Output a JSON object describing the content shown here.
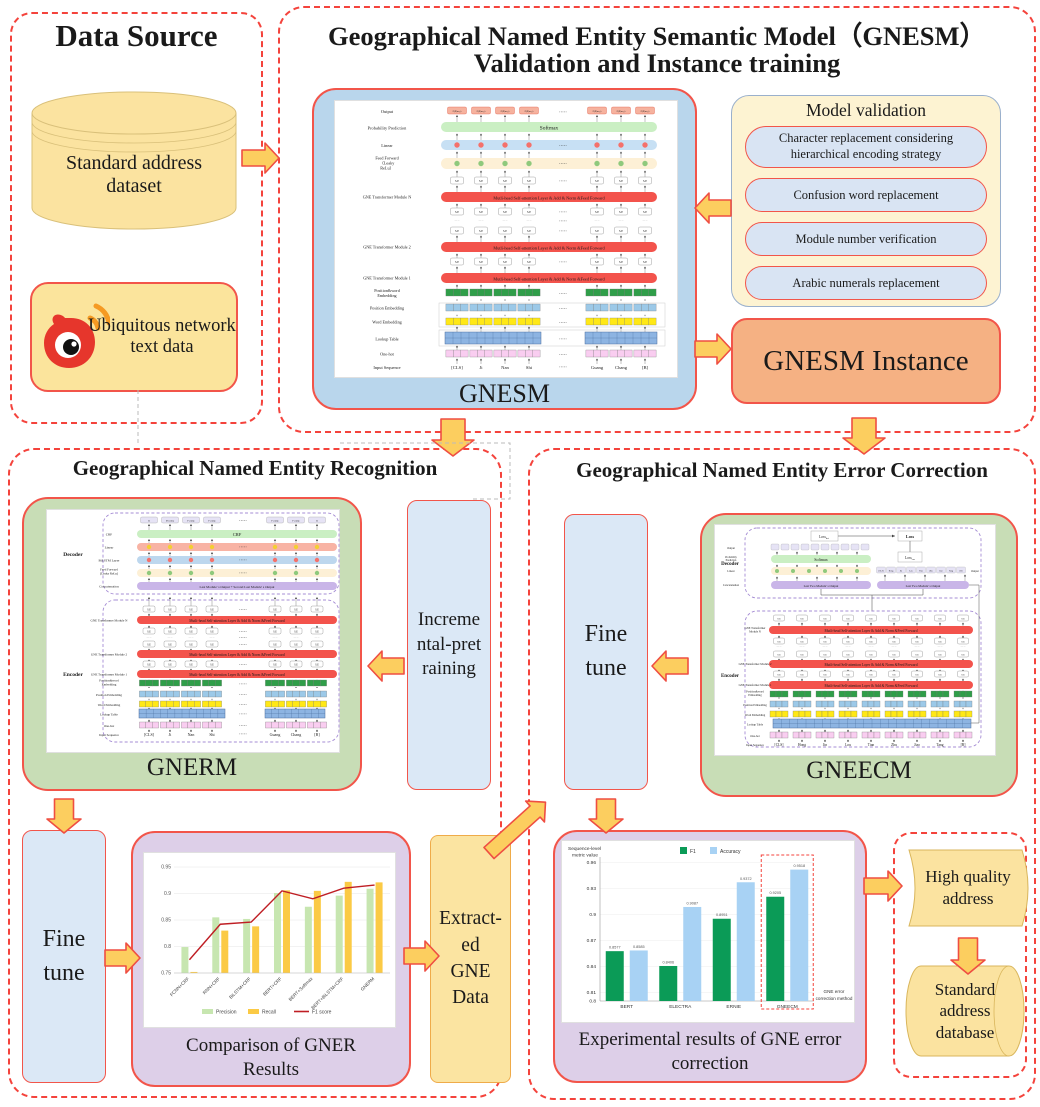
{
  "data_source": {
    "title": "Data Source",
    "dataset_label": "Standard address dataset",
    "network_label": "Ubiquitous network text data"
  },
  "semantic_section": {
    "title_line1": "Geographical Named Entity Semantic Model（GNESM）",
    "title_line2": "Validation and Instance training",
    "model_label": "GNESM",
    "validation_title": "Model validation",
    "validation_items": [
      "Character replacement considering hierarchical encoding strategy",
      "Confusion word replacement",
      "Module number verification",
      "Arabic numerals replacement"
    ],
    "instance_label": "GNESM Instance"
  },
  "recognition_section": {
    "title": "Geographical Named Entity Recognition",
    "model_label": "GNERM",
    "incremental_label": "Incremental-pretraining",
    "fine_tune_label": "Fine tune",
    "chart_caption": "Comparison of GNER Results",
    "extracted_label": "Extract-ed GNE Data"
  },
  "correction_section": {
    "title": "Geographical Named Entity Error Correction",
    "model_label": "GNEECM",
    "fine_tune_label": "Fine tune",
    "chart_caption": "Experimental results of GNE error correction",
    "high_quality_label": "High quality address",
    "database_label": "Standard address database"
  },
  "chart_data": [
    {
      "type": "bar+line",
      "categories": [
        "FCNN+CRF",
        "RNN+CRF",
        "BiLSTM+CRF",
        "BERT+CRF",
        "BERT+Softmax",
        "BERT+BiLSTM+CRF",
        "GNERM"
      ],
      "series": [
        {
          "name": "Precision",
          "type": "bar",
          "color": "#c7e6b0",
          "values": [
            0.799,
            0.855,
            0.852,
            0.901,
            0.875,
            0.896,
            0.909
          ]
        },
        {
          "name": "Recall",
          "type": "bar",
          "color": "#fbca45",
          "values": [
            0.752,
            0.83,
            0.838,
            0.906,
            0.905,
            0.922,
            0.921
          ]
        },
        {
          "name": "F1 score",
          "type": "line",
          "color": "#bf1e24",
          "values": [
            0.775,
            0.842,
            0.846,
            0.905,
            0.89,
            0.91,
            0.916
          ]
        }
      ],
      "ylim": [
        0.75,
        0.95
      ],
      "yticks": [
        0.75,
        0.8,
        0.85,
        0.9,
        0.95
      ],
      "legend_position": "bottom",
      "grid": true
    },
    {
      "type": "bar",
      "categories": [
        "BERT",
        "ELECTRA",
        "ERNIE",
        "GNEECM"
      ],
      "series": [
        {
          "name": "F1",
          "color": "#0b9b57",
          "values": [
            0.8577,
            0.8406,
            0.8951,
            0.9205
          ]
        },
        {
          "name": "Accuracy",
          "color": "#a8d2f4",
          "values": [
            0.8585,
            0.9087,
            0.9372,
            0.9518
          ]
        }
      ],
      "ylabel": "Sequence-level metric value",
      "xlabel": "GNE error correction method",
      "ylim": [
        0.8,
        0.96
      ],
      "yticks": [
        0.8,
        0.81,
        0.84,
        0.87,
        0.9,
        0.93,
        0.96
      ],
      "highlight_category": "GNEECM",
      "value_labels": true,
      "legend_position": "top",
      "grid": true
    }
  ],
  "diagram": {
    "shared": {
      "se": "S.E",
      "red_bar": "Mutli-head Self-attention Layer & Add & Norm &Feed Forward",
      "module_n": "GNE Transformer Module N",
      "module_2": "GNE Transformer Module 2",
      "module_1": "GNE Transformer Module 1",
      "pos_word": [
        "Position&word",
        "Embedding"
      ],
      "pos": "Position Embedding",
      "word": "Word Embedding",
      "lookup": "Lookup Table",
      "onehot": "One-hot",
      "input": "Input Sequence",
      "decoder": "Decoder",
      "encoder": "Encoder"
    },
    "gnesm": {
      "output_label": "Output",
      "output_box": "P(X|m,c)",
      "prob_label": "Probability Prediction",
      "softmax": "Softmax",
      "linear_label": "Linear",
      "ff_label": [
        "Feed Forward",
        "（Leaky",
        "ReLu）"
      ],
      "tokens": [
        "[CLS]",
        "Ji",
        "Nan",
        "Shi",
        "Guang",
        "Chang",
        "[B]"
      ]
    },
    "gnerm": {
      "tags": [
        "O",
        "B-entity",
        "I-entity",
        "I-entity",
        "I-entity",
        "I-entity",
        "O"
      ],
      "crf": "CRF",
      "linear_label": "Linear",
      "bilstm_label": "BiLSTM Layer",
      "ff_label": [
        "Feed Forward",
        "(Leaky ReLu)"
      ],
      "concat_label": "Concatenation",
      "concat_text": "Last Module' s Output + Second Last Module' s Output",
      "tokens": [
        "[CLS]",
        "Ji",
        "Nan",
        "Shi",
        "Guang",
        "Chang",
        "[B]"
      ]
    },
    "gneecm": {
      "loss_main": "Loss",
      "loss_det_sub": "det",
      "loss_cor_sub": "cor",
      "output_label": "Output",
      "prob_label": [
        "Probability",
        "Prediction"
      ],
      "softmax": "Softmax",
      "linear_label": "Linear",
      "concat_label": "Concatenation",
      "concat_left": "Last Two Module' s Output",
      "concat_right": "Last Two Module' s Output",
      "right_output_label": "Output",
      "module_n": [
        "GNE Transformer",
        "Module N"
      ],
      "tokens": [
        "[CLS]",
        "Hong",
        "Jin",
        "Lou",
        "Tian",
        "Zhu",
        "Jiao",
        "Tang",
        "[B]"
      ]
    }
  }
}
